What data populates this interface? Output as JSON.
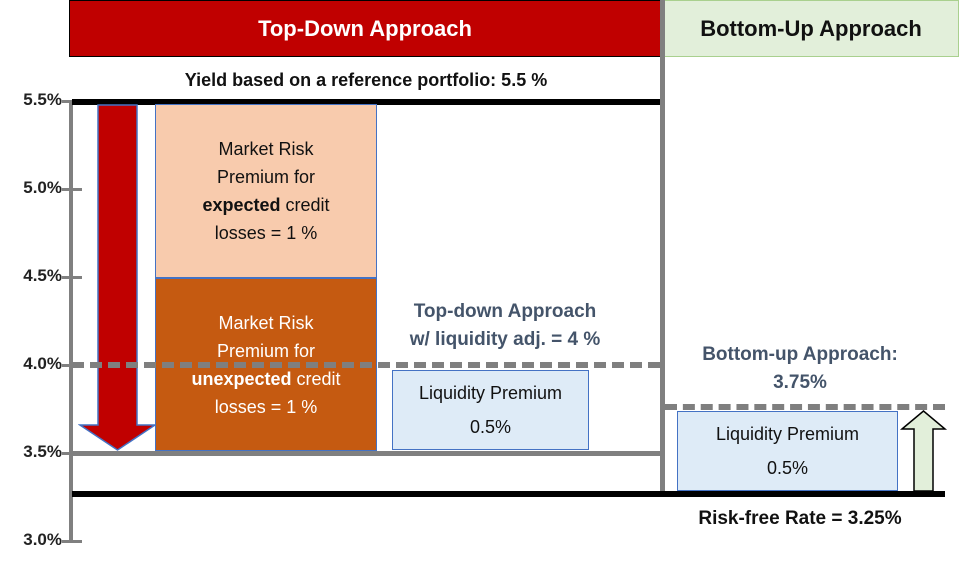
{
  "headers": {
    "top_down": "Top-Down Approach",
    "bottom_up": "Bottom-Up Approach"
  },
  "y_axis": {
    "ticks": [
      "5.5%",
      "5.0%",
      "4.5%",
      "4.0%",
      "3.5%",
      "3.0%"
    ]
  },
  "reference_yield_label": "Yield based on a reference portfolio: 5.5 %",
  "expected_box": {
    "line1": "Market Risk",
    "line2": "Premium for",
    "bold": "expected",
    "rest": " credit",
    "line4": "losses = 1 %"
  },
  "unexpected_box": {
    "line1": "Market Risk",
    "line2": "Premium for",
    "bold": "unexpected",
    "rest": " credit",
    "line4": "losses = 1 %"
  },
  "top_down_liquidity": {
    "line1": "Top-down Approach",
    "line2": "w/ liquidity adj. =  4 %"
  },
  "liquidity_box_1": {
    "title": "Liquidity Premium",
    "value": "0.5%"
  },
  "bottom_up_label": {
    "line1": "Bottom-up Approach:",
    "line2": "3.75%"
  },
  "liquidity_box_2": {
    "title": "Liquidity Premium",
    "value": "0.5%"
  },
  "risk_free_label": "Risk-free Rate = 3.25%",
  "colors": {
    "red": "#c00000",
    "peach": "#f8cbad",
    "orange": "#c55a11",
    "light_blue": "#deebf7",
    "light_green": "#e2efda",
    "gray": "#7f7f7f"
  }
}
